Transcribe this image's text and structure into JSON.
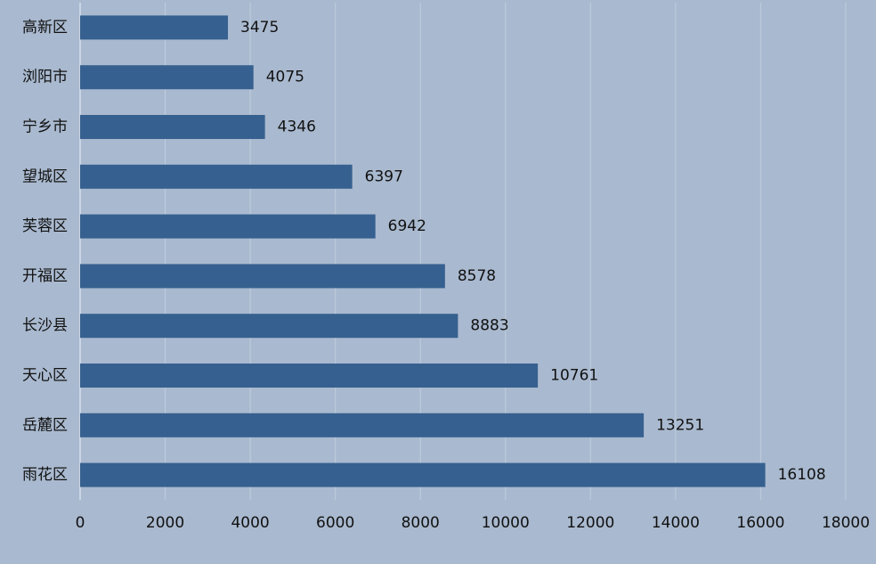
{
  "chart_data": {
    "type": "bar",
    "horizontal": true,
    "categories": [
      "高新区",
      "浏阳市",
      "宁乡市",
      "望城区",
      "芙蓉区",
      "开福区",
      "长沙县",
      "天心区",
      "岳麓区",
      "雨花区"
    ],
    "values": [
      3475,
      4075,
      4346,
      6397,
      6942,
      8578,
      8883,
      10761,
      13251,
      16108
    ],
    "color": "#36608f",
    "xlim": [
      0,
      18000
    ],
    "xticks": [
      0,
      2000,
      4000,
      6000,
      8000,
      10000,
      12000,
      14000,
      16000,
      18000
    ],
    "grid": true
  }
}
